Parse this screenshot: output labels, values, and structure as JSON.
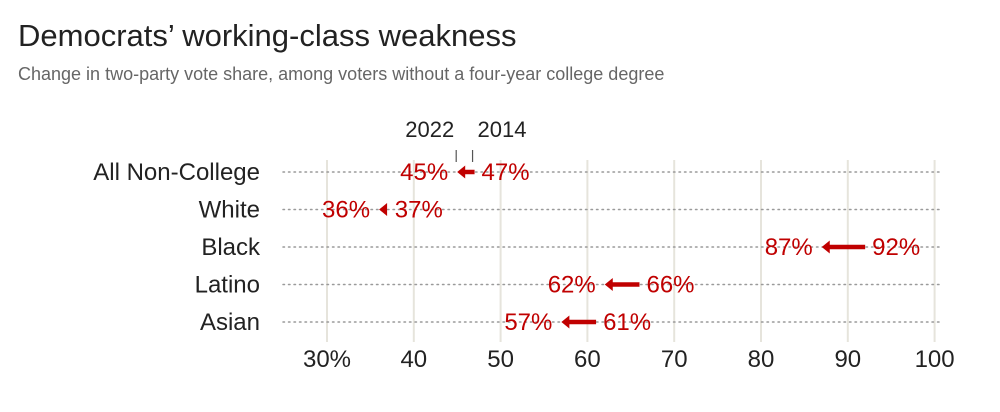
{
  "chart_data": {
    "type": "arrow",
    "title": "Democrats’ working-class weakness",
    "subtitle": "Change in two-party vote share, among voters without a four-year college degree",
    "legend": {
      "from_label": "2014",
      "to_label": "2022",
      "placement": "top, above first row"
    },
    "categories": [
      "All Non-College",
      "White",
      "Black",
      "Latino",
      "Asian"
    ],
    "series": [
      {
        "name": "2014",
        "values": [
          47,
          37,
          92,
          66,
          61
        ]
      },
      {
        "name": "2022",
        "values": [
          45,
          36,
          87,
          62,
          57
        ]
      }
    ],
    "value_labels_2014": [
      "47%",
      "37%",
      "92%",
      "66%",
      "61%"
    ],
    "value_labels_2022": [
      "45%",
      "36%",
      "87%",
      "62%",
      "57%"
    ],
    "xlim": [
      25,
      100
    ],
    "xticks": [
      30,
      40,
      50,
      60,
      70,
      80,
      90,
      100
    ],
    "xtick_labels": [
      "30%",
      "40",
      "50",
      "60",
      "70",
      "80",
      "90",
      "100"
    ],
    "grid": true,
    "colors": {
      "arrow": "#c00000",
      "grid": "#e6e4dc",
      "dots": "#9a9a9a",
      "text": "#222222",
      "subtitle": "#666666"
    }
  }
}
